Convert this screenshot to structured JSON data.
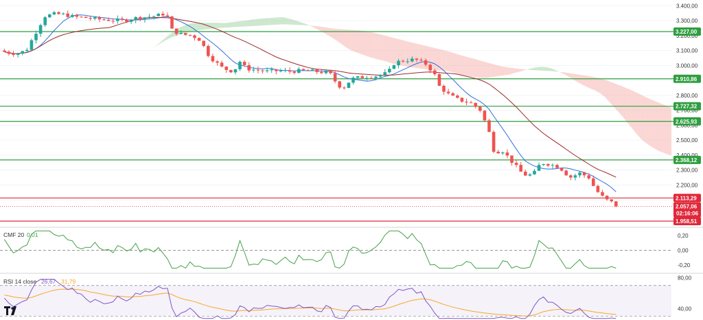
{
  "chart_data": [
    {
      "type": "candlestick",
      "pane": "price",
      "y_axis_ticks": [
        "3.400,00",
        "3.300,00",
        "3.200,00",
        "3.100,00",
        "3.000,00",
        "2.900,00",
        "2.800,00",
        "2.700,00",
        "2.600,00",
        "2.500,00",
        "2.400,00",
        "2.300,00",
        "2.200,00",
        "2.100,00"
      ],
      "ylim": [
        1940,
        3420
      ],
      "levels": [
        {
          "label": "3.227,00",
          "value": 3227.0,
          "color": "#2e9e3e"
        },
        {
          "label": "2.910,86",
          "value": 2910.86,
          "color": "#2e9e3e"
        },
        {
          "label": "2.727,32",
          "value": 2727.32,
          "color": "#2e9e3e"
        },
        {
          "label": "2.625,93",
          "value": 2625.93,
          "color": "#2e9e3e"
        },
        {
          "label": "2.368,12",
          "value": 2368.12,
          "color": "#2e9e3e"
        },
        {
          "label": "2.113,29",
          "value": 2113.29,
          "color": "#e0283a"
        },
        {
          "label": "1.958,51",
          "value": 1958.51,
          "color": "#e0283a"
        }
      ],
      "last_price": {
        "label": "2.057,06",
        "value": 2057.06,
        "countdown": "02:16:06",
        "color": "#e0283a"
      },
      "colors": {
        "up": "#26a69a",
        "down": "#ef5350",
        "tenkan": "#2f6fde",
        "kijun": "#9c2a2a",
        "cloud_bull": "#a5d6a7",
        "cloud_bear": "#f5b7b1"
      }
    },
    {
      "type": "line",
      "pane": "cmf",
      "indicator": "CMF 20",
      "value_label": "0,01",
      "y_axis_ticks": [
        "0,20",
        "0,00",
        "-0,20"
      ],
      "ylim": [
        -0.3,
        0.3
      ],
      "color": "#43a047"
    },
    {
      "type": "line",
      "pane": "rsi",
      "indicator": "RSI 14 close",
      "value_label": "26,67",
      "signal_label": "31,79",
      "y_axis_ticks": [
        "80,00",
        "40,00"
      ],
      "ylim": [
        25,
        85
      ],
      "band": [
        30,
        70
      ],
      "colors": {
        "rsi": "#7e57c2",
        "signal": "#f9a825"
      }
    }
  ]
}
